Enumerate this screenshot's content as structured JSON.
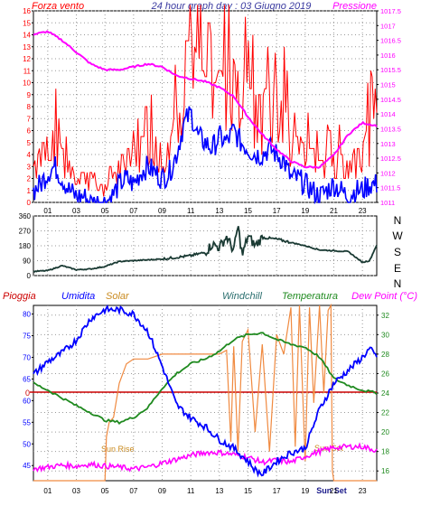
{
  "colors": {
    "wind_red": "#ff0000",
    "wind_blue": "#0000ff",
    "pressure": "#ff00ff",
    "direction": "#1a3a33",
    "rain": "#cc0000",
    "humidity": "#0000ff",
    "solar": "#f08a40",
    "temperature": "#1f8a1f",
    "dewpoint": "#ff00ff",
    "solar_label": "#c98a1f",
    "windchill_label": "#2b6f6f",
    "grid": "#9a9a9a",
    "axis_frame": "#000000"
  },
  "chart_data": [
    {
      "type": "line",
      "title": "24 hour graph day : 03 Giugno 2019",
      "left_label": "Forza vento",
      "right_label": "Pressione",
      "y_left": {
        "min": 0,
        "max": 16,
        "ticks": [
          "0",
          "1",
          "2",
          "3",
          "4",
          "5",
          "6",
          "7",
          "8",
          "9",
          "10",
          "11",
          "12",
          "13",
          "14",
          "15",
          "16"
        ]
      },
      "y_right": {
        "min": 1011,
        "max": 1017.5,
        "ticks": [
          "1011",
          "1011.5",
          "1012",
          "1012.5",
          "1013",
          "1013.5",
          "1014",
          "1014.5",
          "1015",
          "1015.5",
          "1016",
          "1016.5",
          "1017",
          "1017.5"
        ]
      },
      "x_ticks": [
        "01",
        "03",
        "05",
        "07",
        "09",
        "11",
        "13",
        "15",
        "17",
        "19",
        "21",
        "23"
      ],
      "x_tick_hours": [
        1,
        3,
        5,
        7,
        9,
        11,
        13,
        15,
        17,
        19,
        21,
        23
      ],
      "x_range": [
        0,
        24
      ],
      "grid": true,
      "series": [
        {
          "key": "gust",
          "style": "bars",
          "x": [
            0,
            0.5,
            1,
            1.5,
            2,
            2.5,
            3,
            3.5,
            4,
            4.5,
            5,
            5.5,
            6,
            6.5,
            7,
            7.5,
            8,
            8.5,
            9,
            9.5,
            10,
            10.5,
            11,
            11.5,
            12,
            12.5,
            13,
            13.5,
            14,
            14.5,
            15,
            15.5,
            16,
            16.5,
            17,
            17.5,
            18,
            18.5,
            19,
            19.5,
            20,
            20.5,
            21,
            21.5,
            22,
            22.5,
            23,
            23.5,
            24
          ],
          "values": [
            3,
            4.5,
            5.5,
            6,
            4.5,
            3.5,
            2,
            2.5,
            2.5,
            1,
            1.5,
            2,
            3.5,
            4.5,
            4,
            5.5,
            6,
            5.5,
            4.5,
            5,
            8,
            13,
            14,
            12,
            10.5,
            9.5,
            11,
            10.5,
            12,
            10.5,
            10,
            9,
            9,
            10,
            9.5,
            8,
            5.5,
            5.5,
            5,
            4.5,
            3.5,
            4,
            4,
            4,
            3.5,
            4.5,
            5,
            6.5,
            7.5
          ]
        },
        {
          "key": "wind",
          "style": "line",
          "x": [
            0,
            0.5,
            1,
            1.5,
            2,
            2.5,
            3,
            3.5,
            4,
            4.5,
            5,
            5.5,
            6,
            6.5,
            7,
            7.5,
            8,
            8.5,
            9,
            9.5,
            10,
            10.5,
            11,
            11.5,
            12,
            12.5,
            13,
            13.5,
            14,
            14.5,
            15,
            15.5,
            16,
            16.5,
            17,
            17.5,
            18,
            18.5,
            19,
            19.5,
            20,
            20.5,
            21,
            21.5,
            22,
            22.5,
            23,
            23.5,
            24
          ],
          "values": [
            1,
            1.5,
            2.5,
            3,
            2,
            1,
            0.5,
            0.5,
            0,
            0,
            0,
            0.5,
            1.5,
            2,
            1.5,
            2.5,
            3,
            2.5,
            2,
            2.5,
            4,
            6.5,
            7.5,
            5.5,
            5,
            4.5,
            5.5,
            5,
            6,
            5,
            4.5,
            4,
            4,
            4.5,
            4,
            3.5,
            2,
            2,
            1.5,
            1,
            0.5,
            1,
            1.5,
            1,
            0.5,
            1,
            1,
            1.5,
            1.5
          ]
        },
        {
          "key": "pressure",
          "style": "line",
          "axis": "right",
          "x": [
            0,
            1,
            2,
            3,
            4,
            5,
            6,
            7,
            8,
            9,
            10,
            11,
            12,
            13,
            14,
            15,
            16,
            17,
            18,
            19,
            20,
            21,
            22,
            23,
            24
          ],
          "values": [
            1016.7,
            1016.8,
            1016.5,
            1016.1,
            1015.7,
            1015.5,
            1015.5,
            1015.6,
            1015.7,
            1015.6,
            1015.3,
            1015.2,
            1015.1,
            1014.9,
            1014.6,
            1013.9,
            1013.3,
            1012.8,
            1012.4,
            1012.2,
            1012.2,
            1012.6,
            1013.3,
            1013.7,
            1013.6
          ]
        }
      ]
    },
    {
      "type": "line",
      "y": {
        "min": 0,
        "max": 360,
        "ticks": [
          "0",
          "90",
          "180",
          "270",
          "360"
        ]
      },
      "right_labels": [
        "N",
        "W",
        "S",
        "E",
        "N"
      ],
      "x_range": [
        0,
        24
      ],
      "grid": true,
      "series": [
        {
          "key": "direction",
          "x": [
            0,
            1,
            2,
            3,
            4,
            5,
            6,
            7,
            8,
            9,
            10,
            11,
            12,
            12.5,
            13,
            13.5,
            14,
            14.3,
            14.6,
            15,
            15.5,
            16,
            17,
            18,
            19,
            20,
            21,
            22,
            23,
            23.5,
            24
          ],
          "values": [
            25,
            30,
            60,
            35,
            40,
            55,
            85,
            90,
            95,
            100,
            110,
            120,
            140,
            190,
            170,
            235,
            150,
            300,
            120,
            240,
            180,
            230,
            220,
            200,
            180,
            155,
            150,
            145,
            80,
            90,
            185
          ]
        }
      ]
    },
    {
      "type": "line",
      "labels": {
        "rain": "Pioggia",
        "humidity": "Umidita",
        "solar": "Solar",
        "windchill": "Windchill",
        "temperature": "Temperatura",
        "dewpoint": "Dew Point (°C)"
      },
      "y_left": {
        "min": 41.5,
        "max": 82,
        "ticks": [
          "45",
          "50",
          "55",
          "60",
          "65",
          "70",
          "75",
          "80"
        ]
      },
      "y_right": {
        "min": 15,
        "max": 33,
        "ticks": [
          "16",
          "18",
          "20",
          "22",
          "24",
          "26",
          "28",
          "30",
          "32"
        ]
      },
      "rain_value": "0",
      "x_ticks": [
        "01",
        "03",
        "05",
        "07",
        "09",
        "11",
        "13",
        "15",
        "17",
        "19",
        "21",
        "23"
      ],
      "x_tick_hours": [
        1,
        3,
        5,
        7,
        9,
        11,
        13,
        15,
        17,
        19,
        21,
        23
      ],
      "x_range": [
        0,
        24
      ],
      "grid": true,
      "annotations": {
        "sunrise_label": "Sun Rise",
        "sunrise_hour": 5.2,
        "sunset_label": "Sun Set",
        "sunset_hour": 20.9,
        "axis_sunset_label": "Sun Set"
      },
      "series": [
        {
          "key": "humidity",
          "axis": "left",
          "x": [
            0,
            1,
            2,
            3,
            4,
            5,
            6,
            7,
            8,
            9,
            10,
            11,
            12,
            13,
            14,
            15,
            15.5,
            16,
            17,
            18,
            19,
            20,
            21,
            22,
            23,
            23.5,
            24
          ],
          "values": [
            66,
            69,
            71,
            74,
            79,
            81,
            81,
            80,
            76,
            68,
            59,
            56,
            54,
            51,
            49,
            46,
            44,
            43,
            46,
            48,
            49,
            58,
            64,
            67,
            70,
            72,
            70
          ]
        },
        {
          "key": "temperature",
          "axis": "right",
          "x": [
            0,
            1,
            2,
            3,
            4,
            5,
            6,
            7,
            8,
            9,
            10,
            11,
            12,
            13,
            14,
            15,
            16,
            17,
            18,
            19,
            20,
            21,
            22,
            23,
            24
          ],
          "values": [
            25,
            24.3,
            23.5,
            22.7,
            22,
            21.2,
            21,
            21.5,
            22.5,
            24.5,
            26,
            27,
            27.5,
            28.3,
            29.5,
            30,
            30.2,
            29.5,
            29,
            28.7,
            27.7,
            25.5,
            24.8,
            24.3,
            24
          ]
        },
        {
          "key": "dewpoint",
          "axis": "right",
          "x": [
            0,
            1,
            2,
            3,
            4,
            5,
            6,
            7,
            8,
            9,
            10,
            11,
            12,
            13,
            14,
            15,
            16,
            17,
            18,
            19,
            20,
            21,
            22,
            23,
            24
          ],
          "values": [
            16.2,
            16.4,
            16.6,
            16.5,
            16.7,
            16.5,
            16.4,
            16.2,
            16.4,
            16.8,
            17.2,
            17.6,
            17.9,
            17.9,
            17.7,
            17.4,
            16.9,
            17.1,
            16.9,
            17.5,
            18,
            18.4,
            18.5,
            18.5,
            18.1
          ]
        },
        {
          "key": "solar",
          "axis": "right",
          "x": [
            0,
            5,
            5.1,
            5.3,
            5.6,
            6,
            6.5,
            7,
            8,
            9,
            10,
            11,
            12,
            13,
            13.5,
            13.8,
            14,
            14.3,
            14.6,
            15,
            15.5,
            16,
            16.5,
            17,
            17.5,
            18,
            18.3,
            18.6,
            19,
            19.3,
            19.6,
            20,
            20.3,
            20.6,
            20.8,
            20.9,
            21,
            24
          ],
          "values": [
            15,
            15,
            19.5,
            21,
            21.5,
            25,
            27,
            27.5,
            27.5,
            28,
            28,
            28,
            28,
            28,
            28.4,
            19,
            28.8,
            18,
            29.3,
            30.5,
            20,
            29,
            18,
            30,
            28,
            32.8,
            18.5,
            33,
            17,
            32.8,
            23,
            33,
            24,
            32.5,
            33,
            16,
            15,
            15
          ]
        }
      ]
    }
  ]
}
